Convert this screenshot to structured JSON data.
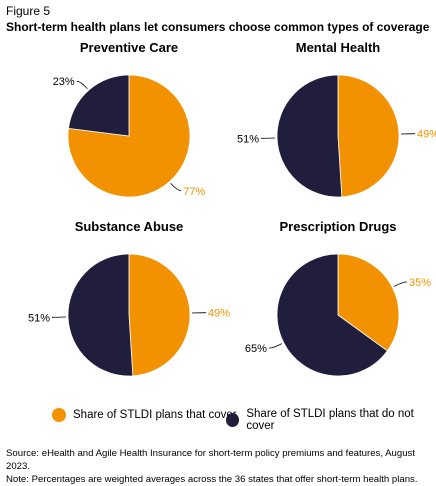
{
  "figure_label": "Figure 5",
  "title": "Short-term health plans let consumers choose common types of coverage",
  "colors": {
    "cover": "#F39200",
    "not_cover": "#211D3D"
  },
  "legend": [
    {
      "label": "Share of STLDI plans that cover",
      "color": "#F39200"
    },
    {
      "label": "Share of STLDI plans that do not cover",
      "color": "#211D3D"
    }
  ],
  "chart_data": [
    {
      "type": "pie",
      "title": "Preventive Care",
      "series": [
        {
          "name": "Share of STLDI plans that cover",
          "value": 77,
          "label": "77%"
        },
        {
          "name": "Share of STLDI plans that do not cover",
          "value": 23,
          "label": "23%"
        }
      ]
    },
    {
      "type": "pie",
      "title": "Mental Health",
      "series": [
        {
          "name": "Share of STLDI plans that cover",
          "value": 49,
          "label": "49%"
        },
        {
          "name": "Share of STLDI plans that do not cover",
          "value": 51,
          "label": "51%"
        }
      ]
    },
    {
      "type": "pie",
      "title": "Substance Abuse",
      "series": [
        {
          "name": "Share of STLDI plans that cover",
          "value": 49,
          "label": "49%"
        },
        {
          "name": "Share of STLDI plans that do not cover",
          "value": 51,
          "label": "51%"
        }
      ]
    },
    {
      "type": "pie",
      "title": "Prescription Drugs",
      "series": [
        {
          "name": "Share of STLDI plans that cover",
          "value": 35,
          "label": "35%"
        },
        {
          "name": "Share of STLDI plans that do not cover",
          "value": 65,
          "label": "65%"
        }
      ]
    }
  ],
  "source": "Source: eHealth and Agile Health Insurance for short-term policy premiums and features, August 2023.",
  "note": "Note: Percentages are weighted averages across the 36 states that offer short-term health plans."
}
